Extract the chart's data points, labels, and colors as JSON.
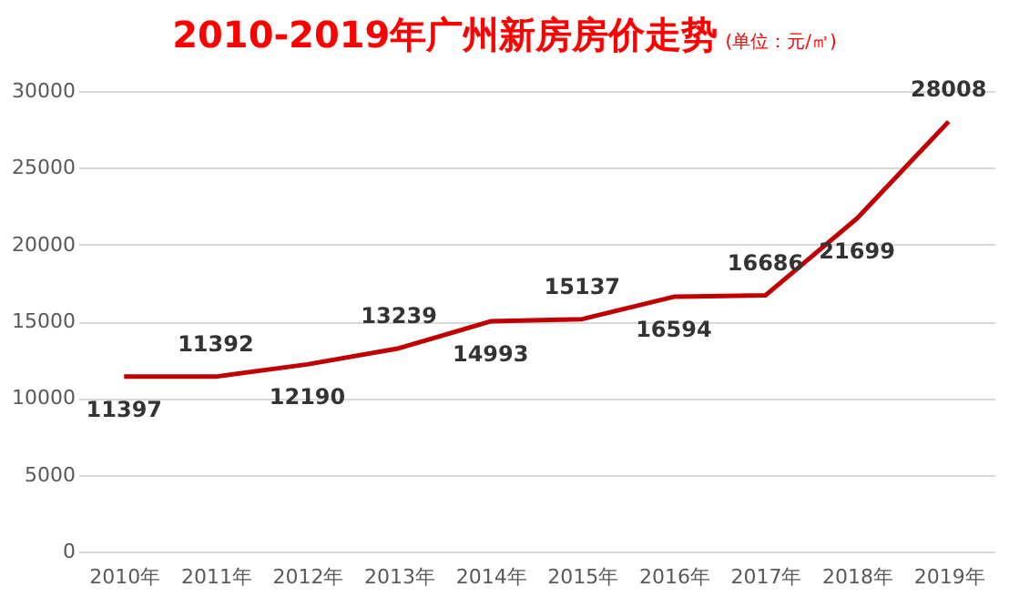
{
  "chart_data": {
    "type": "line",
    "title": "2010-2019年广州新房房价走势",
    "subtitle": "(单位：元/㎡)",
    "categories": [
      "2010年",
      "2011年",
      "2012年",
      "2013年",
      "2014年",
      "2015年",
      "2016年",
      "2017年",
      "2018年",
      "2019年"
    ],
    "series": [
      {
        "color": "#c00000",
        "values": [
          11397,
          11392,
          12190,
          13239,
          14993,
          15137,
          16594,
          16686,
          21699,
          28008
        ]
      }
    ],
    "ylim": [
      0,
      30000
    ],
    "yticks": [
      0,
      5000,
      10000,
      15000,
      20000,
      25000,
      30000
    ],
    "grid": "y",
    "data_labels": true,
    "marker": "none",
    "line_style": "solid",
    "legend": false
  }
}
